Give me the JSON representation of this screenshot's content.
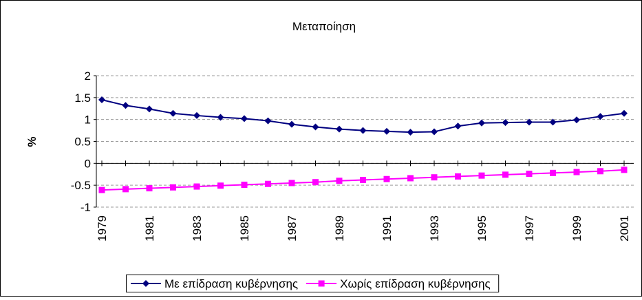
{
  "chart_data": {
    "type": "line",
    "title": "Μεταποίηση",
    "y_label": "%",
    "categories": [
      "1979",
      null,
      "1981",
      null,
      "1983",
      null,
      "1985",
      null,
      "1987",
      null,
      "1989",
      null,
      "1991",
      null,
      "1993",
      null,
      "1995",
      null,
      "1997",
      null,
      "1999",
      null,
      "2001"
    ],
    "series": [
      {
        "name": "Με επίδραση κυβέρνησης",
        "color": "#000080",
        "marker": "diamond",
        "values": [
          1.45,
          1.32,
          1.24,
          1.14,
          1.09,
          1.05,
          1.02,
          0.97,
          0.89,
          0.83,
          0.78,
          0.75,
          0.73,
          0.71,
          0.72,
          0.85,
          0.92,
          0.93,
          0.94,
          0.94,
          0.99,
          1.07,
          1.14
        ]
      },
      {
        "name": "Χωρίς επίδραση κυβέρνησης",
        "color": "#ff00ff",
        "marker": "square",
        "values": [
          -0.61,
          -0.59,
          -0.57,
          -0.55,
          -0.53,
          -0.51,
          -0.49,
          -0.47,
          -0.45,
          -0.43,
          -0.4,
          -0.38,
          -0.36,
          -0.34,
          -0.32,
          -0.3,
          -0.28,
          -0.26,
          -0.24,
          -0.22,
          -0.2,
          -0.18,
          -0.15
        ]
      }
    ],
    "ylim": [
      -1,
      2
    ],
    "yticks": [
      -1,
      -0.5,
      0,
      0.5,
      1,
      1.5,
      2
    ],
    "grid": true,
    "legend": "bottom"
  }
}
